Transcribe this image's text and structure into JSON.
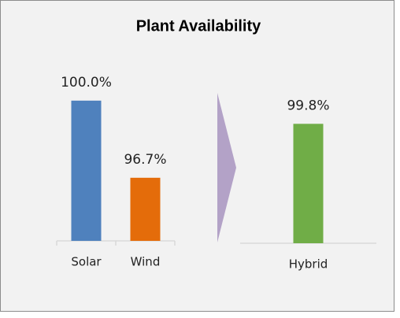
{
  "title": "Plant Availability",
  "chart_data": [
    {
      "type": "bar",
      "categories": [
        "Solar",
        "Wind"
      ],
      "values": [
        100.0,
        96.7
      ],
      "value_labels": [
        "100.0%",
        "96.7%"
      ],
      "colors": [
        "#4f81bd",
        "#e46c0a"
      ],
      "ylim": [
        94,
        100.5
      ]
    },
    {
      "type": "bar",
      "categories": [
        "Hybrid"
      ],
      "values": [
        99.8
      ],
      "value_labels": [
        "99.8%"
      ],
      "colors": [
        "#70ad47"
      ],
      "ylim": [
        94,
        100.5
      ]
    }
  ]
}
